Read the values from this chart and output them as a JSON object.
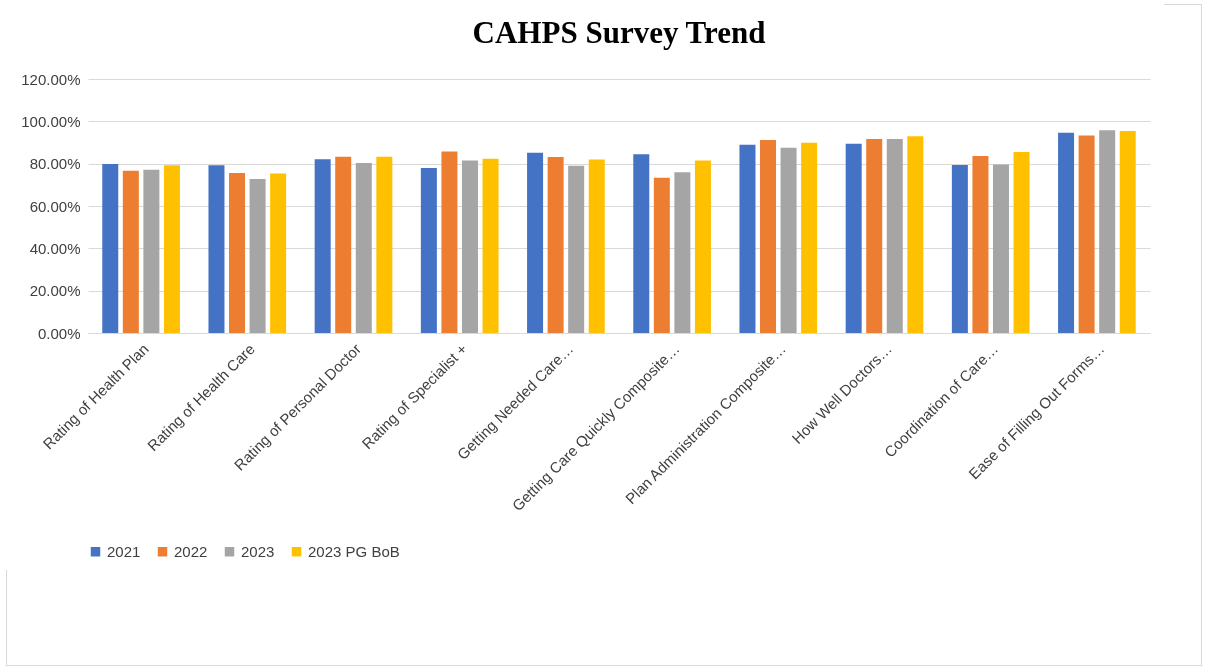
{
  "chart_data": {
    "type": "bar",
    "title": "CAHPS Survey Trend",
    "categories": [
      "Rating of Health Plan",
      "Rating of Health Care",
      "Rating of Personal Doctor",
      "Rating of Specialist +",
      "Getting Needed Care…",
      "Getting Care Quickly Composite…",
      "Plan Administration Composite…",
      "How Well Doctors…",
      "Coordination of Care…",
      "Ease of Filling Out Forms…"
    ],
    "series": [
      {
        "name": "2021",
        "color": "#4472c4",
        "values": [
          79.8,
          79.2,
          82.1,
          77.9,
          85.2,
          84.5,
          88.9,
          89.4,
          79.4,
          94.6
        ]
      },
      {
        "name": "2022",
        "color": "#ed7d31",
        "values": [
          76.7,
          75.6,
          83.3,
          85.7,
          83.1,
          73.4,
          91.2,
          91.6,
          83.6,
          93.3
        ]
      },
      {
        "name": "2023",
        "color": "#a5a5a5",
        "values": [
          77.1,
          72.7,
          80.3,
          81.5,
          79.0,
          75.9,
          87.5,
          91.6,
          79.6,
          95.8
        ]
      },
      {
        "name": "2023 PG BoB",
        "color": "#ffc000",
        "values": [
          79.3,
          75.4,
          83.3,
          82.3,
          82.0,
          81.5,
          89.9,
          92.9,
          85.5,
          95.4
        ]
      }
    ],
    "ylim": [
      0,
      120
    ],
    "yticks": [
      {
        "value": 0,
        "label": "0.00%"
      },
      {
        "value": 20,
        "label": "20.00%"
      },
      {
        "value": 40,
        "label": "40.00%"
      },
      {
        "value": 60,
        "label": "60.00%"
      },
      {
        "value": 80,
        "label": "80.00%"
      },
      {
        "value": 100,
        "label": "100.00%"
      },
      {
        "value": 120,
        "label": "120.00%"
      }
    ],
    "grid": "y",
    "legend": "bottom"
  }
}
